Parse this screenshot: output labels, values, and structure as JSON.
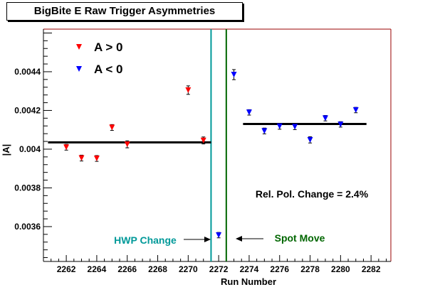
{
  "chart_data": {
    "type": "scatter",
    "title": "BigBite E Raw Trigger Asymmetries",
    "xlabel": "Run Number",
    "ylabel": "|A|",
    "xlim": [
      2260.5,
      2283.3
    ],
    "ylim": [
      0.00342,
      0.00462
    ],
    "x_ticks": [
      "2262",
      "2264",
      "2266",
      "2268",
      "2270",
      "2272",
      "2274",
      "2276",
      "2278",
      "2280",
      "2282"
    ],
    "y_ticks": [
      "0.0036",
      "0.0038",
      "0.004",
      "0.0042",
      "0.0044"
    ],
    "series": [
      {
        "name": "A > 0",
        "color": "#ff0000",
        "points": [
          {
            "x": 2262,
            "y": 0.00401,
            "err": 1.5e-05
          },
          {
            "x": 2263,
            "y": 0.003954,
            "err": 1.5e-05
          },
          {
            "x": 2264,
            "y": 0.003952,
            "err": 1.5e-05
          },
          {
            "x": 2265,
            "y": 0.004112,
            "err": 1.5e-05
          },
          {
            "x": 2266,
            "y": 0.004025,
            "err": 1.8e-05
          },
          {
            "x": 2270,
            "y": 0.004305,
            "err": 2.2e-05
          },
          {
            "x": 2271,
            "y": 0.004045,
            "err": 1.8e-05
          }
        ]
      },
      {
        "name": "A < 0",
        "color": "#0000ff",
        "points": [
          {
            "x": 2272,
            "y": 0.003556,
            "err": 1.4e-05
          },
          {
            "x": 2273,
            "y": 0.004385,
            "err": 2.6e-05
          },
          {
            "x": 2274,
            "y": 0.00419,
            "err": 1.4e-05
          },
          {
            "x": 2275,
            "y": 0.004094,
            "err": 1.5e-05
          },
          {
            "x": 2276,
            "y": 0.004118,
            "err": 1.5e-05
          },
          {
            "x": 2277,
            "y": 0.004116,
            "err": 1.5e-05
          },
          {
            "x": 2278,
            "y": 0.004048,
            "err": 1.6e-05
          },
          {
            "x": 2279,
            "y": 0.00416,
            "err": 1.4e-05
          },
          {
            "x": 2280,
            "y": 0.004128,
            "err": 1.4e-05
          },
          {
            "x": 2281,
            "y": 0.004202,
            "err": 1.4e-05
          }
        ]
      }
    ],
    "fit_lines": [
      {
        "x": [
          2260.8,
          2271.5
        ],
        "y": 0.004035
      },
      {
        "x": [
          2273.6,
          2281.7
        ],
        "y": 0.00413
      }
    ],
    "vertical_lines": [
      {
        "x": 2271.5,
        "color": "#009999"
      },
      {
        "x": 2272.5,
        "color": "#006600"
      }
    ],
    "annotations": {
      "hwp": {
        "text": "HWP Change",
        "color": "#009999"
      },
      "spot": {
        "text": "Spot Move",
        "color": "#006600"
      },
      "pol": {
        "text": "Rel. Pol. Change =  2.4%",
        "color": "#000000"
      }
    },
    "frame_color": "#990000",
    "legend_position": "top-left",
    "grid": false
  }
}
